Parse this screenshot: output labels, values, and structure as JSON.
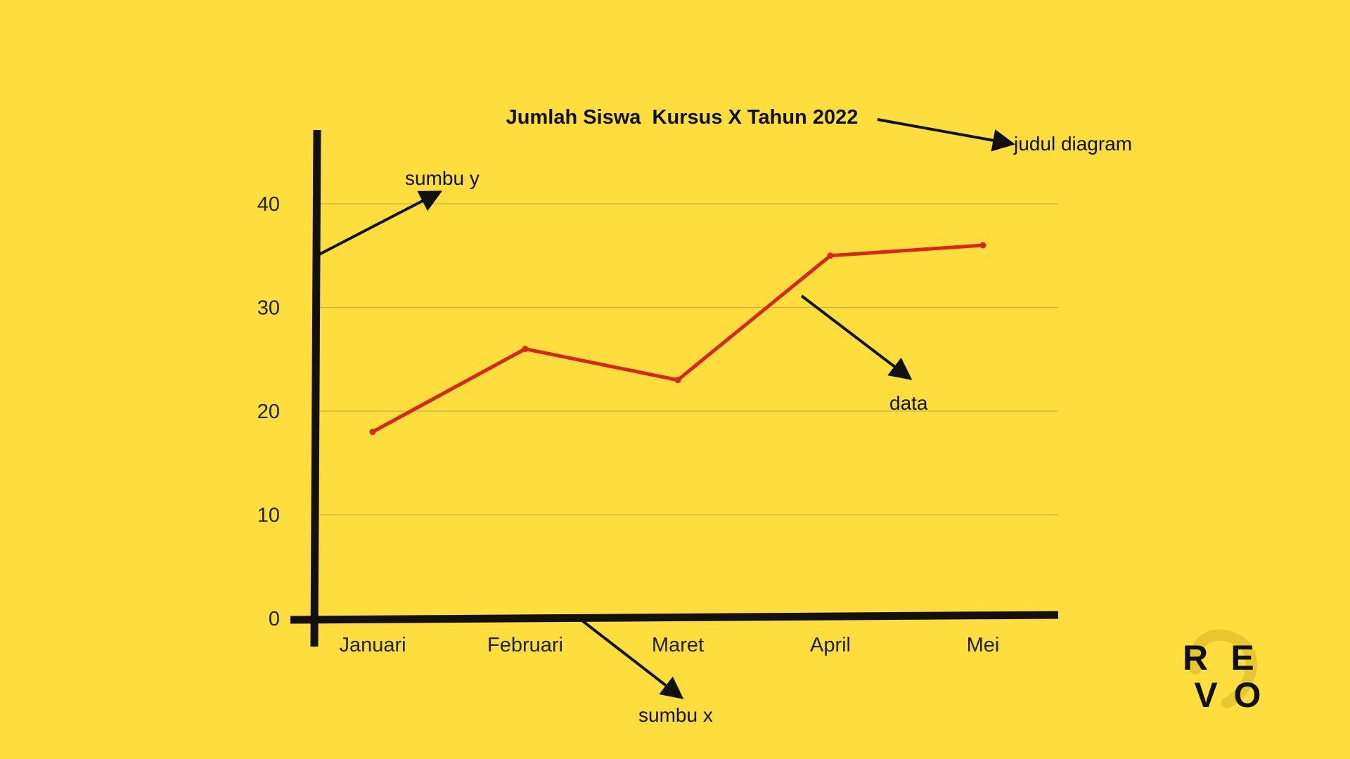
{
  "chart_data": {
    "type": "line",
    "title": "Jumlah Siswa  Kursus X Tahun 2022",
    "categories": [
      "Januari",
      "Februari",
      "Maret",
      "April",
      "Mei"
    ],
    "series": [
      {
        "values": [
          18,
          26,
          23,
          35,
          36
        ],
        "color": "#D9261C"
      }
    ],
    "ylim": [
      0,
      40
    ],
    "yticks": [
      0,
      10,
      20,
      30,
      40
    ],
    "xlabel": "",
    "ylabel": "",
    "grid": true,
    "legend": "none"
  },
  "annotations": {
    "title_arrow": "judul diagram",
    "y_axis_arrow": "sumbu y",
    "data_arrow": "data",
    "x_axis_arrow": "sumbu x"
  },
  "logo": {
    "letters": [
      "R",
      "E",
      "V",
      "O"
    ]
  },
  "colors": {
    "background": "#FEDD3E",
    "gridline": "#C8B445",
    "axis": "#111111",
    "line": "#D9261C"
  }
}
